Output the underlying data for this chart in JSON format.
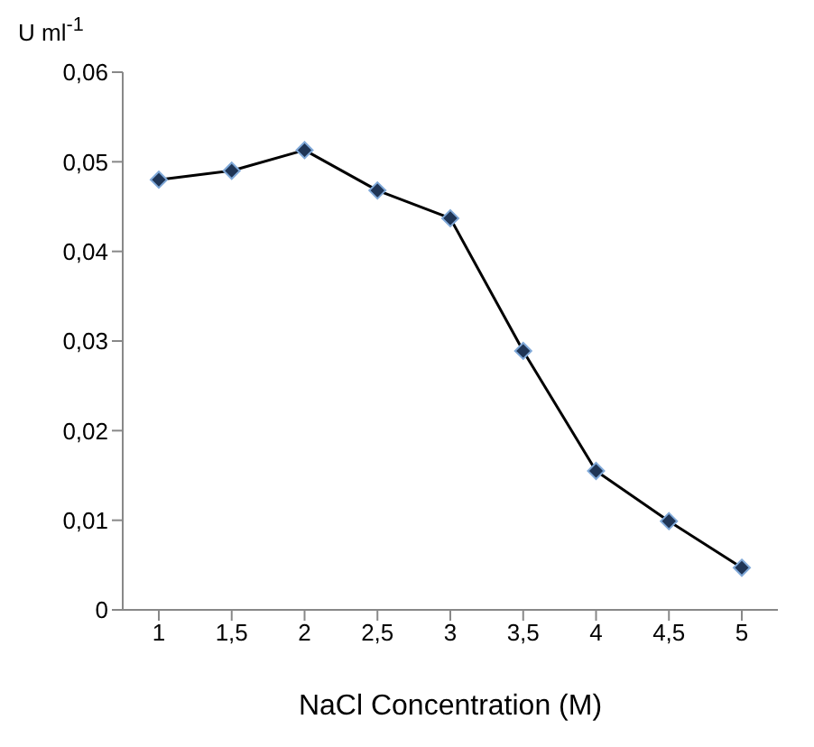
{
  "chart_data": {
    "type": "line",
    "xlabel": "NaCl Concentration (M)",
    "ylabel": "U ml$^{-1}$",
    "categories": [
      "1",
      "1,5",
      "2",
      "2,5",
      "3",
      "3,5",
      "4",
      "4,5",
      "5"
    ],
    "series": [
      {
        "color": "#1f3556",
        "values": [
          0.048,
          0.049,
          0.0513,
          0.0468,
          0.0437,
          0.0289,
          0.0155,
          0.0099,
          0.0047
        ]
      }
    ],
    "ylim": [
      0,
      0.06
    ],
    "yticks": [
      {
        "value": 0,
        "label": "0"
      },
      {
        "value": 0.01,
        "label": "0,01"
      },
      {
        "value": 0.02,
        "label": "0,02"
      },
      {
        "value": 0.03,
        "label": "0,03"
      },
      {
        "value": 0.04,
        "label": "0,04"
      },
      {
        "value": 0.05,
        "label": "0,05"
      },
      {
        "value": 0.06,
        "label": "0,06"
      }
    ],
    "grid": false,
    "legend": false,
    "marker": "diamond",
    "line_style": "solid"
  }
}
